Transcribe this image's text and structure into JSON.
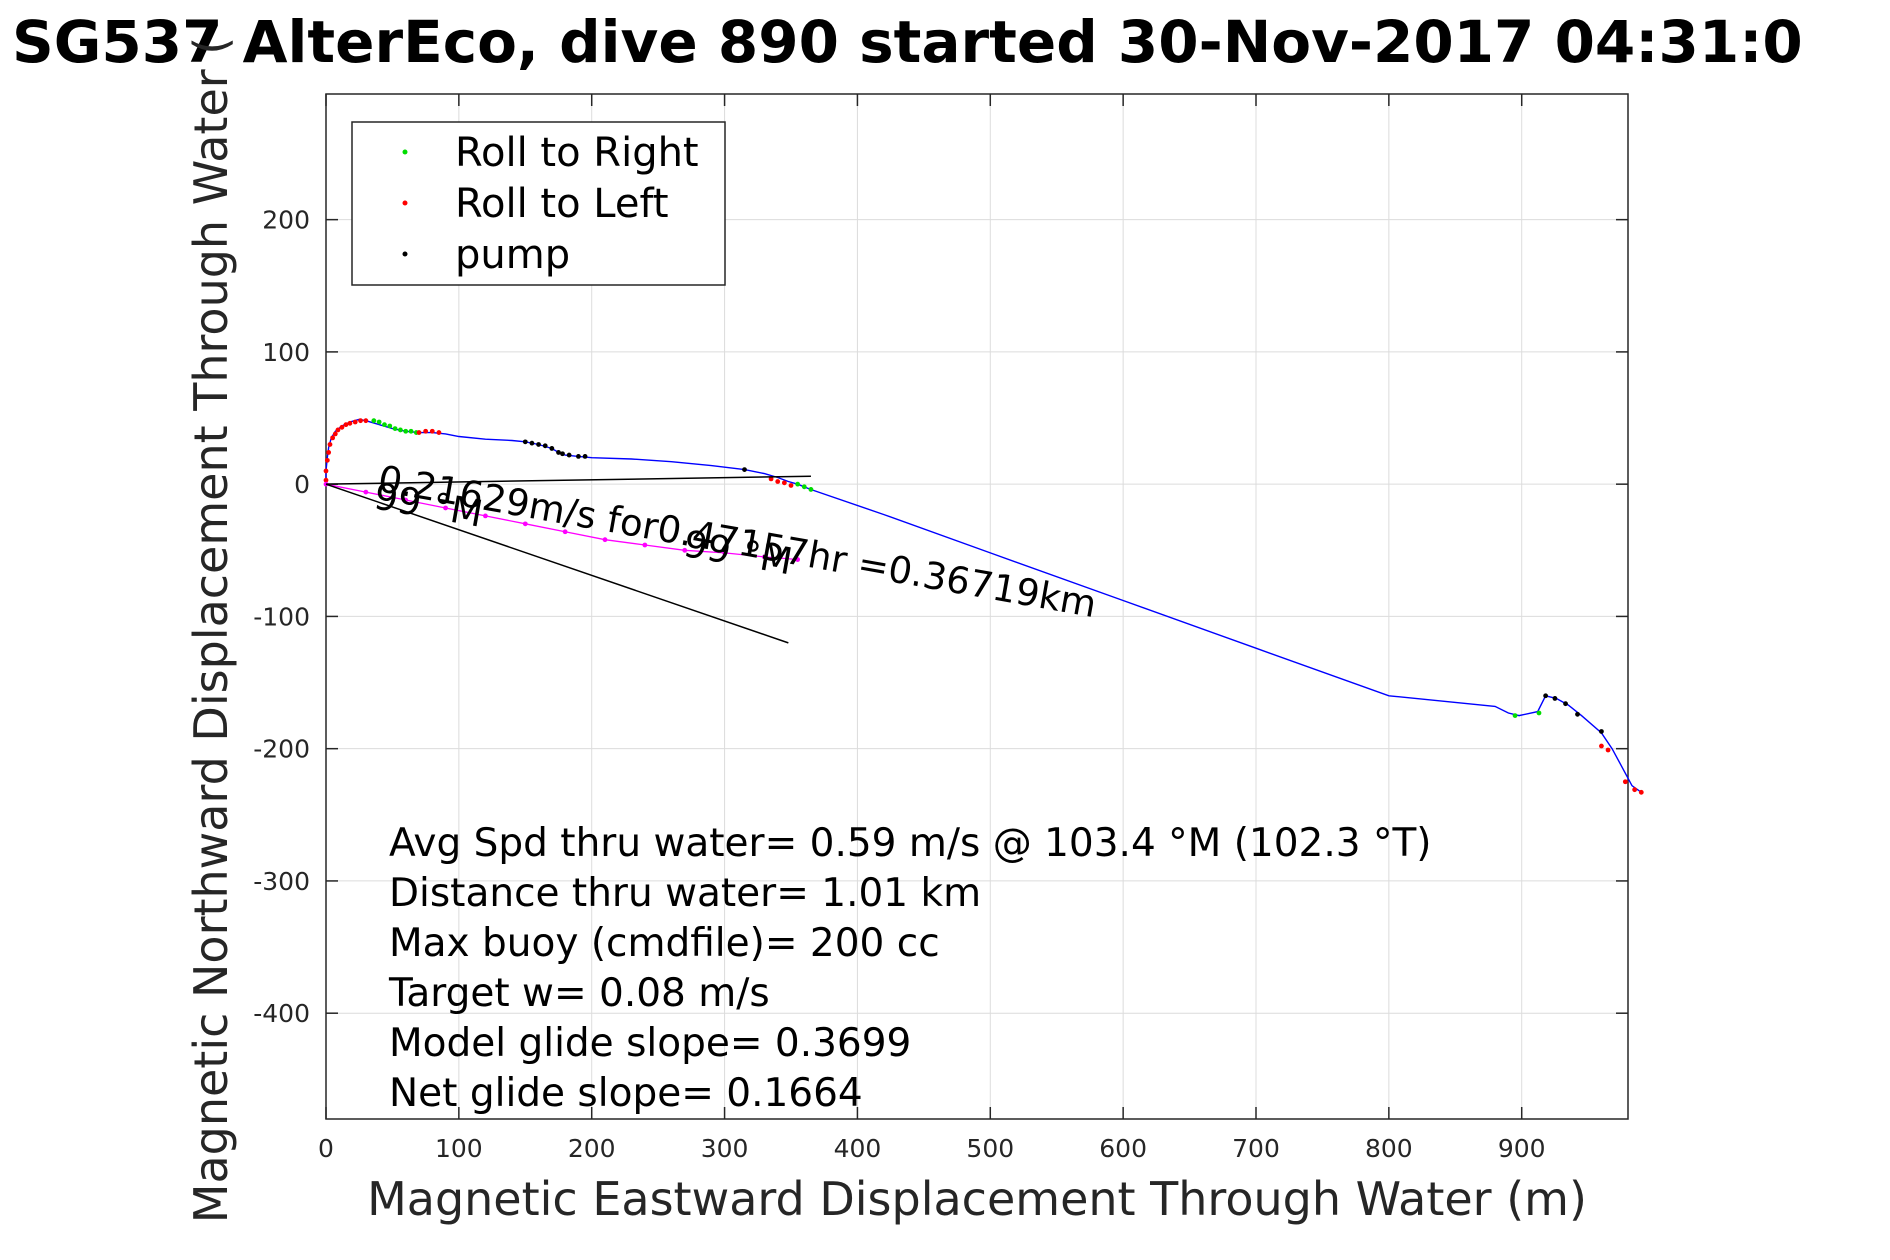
{
  "chart_data": {
    "type": "line",
    "title": "SG537 AlterEco, dive 890 started 30-Nov-2017 04:31:0",
    "xlabel": "Magnetic Eastward Displacement Through Water (m)",
    "ylabel": "Magnetic Northward Displacement Through Water (",
    "xlim": [
      0,
      980
    ],
    "ylim": [
      -480,
      295
    ],
    "xticks": [
      0,
      100,
      200,
      300,
      400,
      500,
      600,
      700,
      800,
      900
    ],
    "yticks": [
      200,
      100,
      0,
      -100,
      -200,
      -300,
      -400
    ],
    "grid": true,
    "legend_position": "top-left",
    "legend": [
      "Roll to Right",
      "Roll to Left",
      "pump"
    ],
    "colors": {
      "track": "#0000ff",
      "roll_right": "#00dd00",
      "roll_left": "#ff0000",
      "pump": "#000000",
      "vector": "#000000",
      "current": "#ff00ff",
      "grid": "#dcdcdc"
    },
    "track": {
      "x": [
        0,
        0,
        1,
        2,
        4,
        7,
        12,
        18,
        25,
        30,
        40,
        50,
        60,
        70,
        80,
        90,
        100,
        120,
        140,
        150,
        160,
        170,
        175,
        180,
        190,
        200,
        230,
        260,
        290,
        315,
        330,
        340,
        348,
        355,
        365,
        420,
        500,
        600,
        700,
        800,
        880,
        890,
        898,
        912,
        918,
        926,
        935,
        945,
        960,
        968,
        975,
        983,
        990
      ],
      "y": [
        0,
        10,
        20,
        28,
        35,
        40,
        44,
        47,
        49,
        48,
        45,
        42,
        40,
        39,
        39,
        38,
        36,
        34,
        33,
        32,
        30,
        27,
        24,
        22,
        21,
        20,
        19,
        17,
        14,
        11,
        8,
        5,
        2,
        0,
        -4,
        -23,
        -52,
        -88,
        -124,
        -160,
        -168,
        -173,
        -175,
        -172,
        -160,
        -162,
        -167,
        -175,
        -188,
        -200,
        -213,
        -228,
        -233
      ]
    },
    "roll_right": {
      "x": [
        36,
        40,
        44,
        48,
        52,
        56,
        60,
        64,
        68,
        355,
        360,
        365,
        895,
        913
      ],
      "y": [
        48,
        47,
        45,
        44,
        42,
        41,
        40,
        40,
        39,
        0,
        -2,
        -4,
        -175,
        -173
      ]
    },
    "roll_left": {
      "x": [
        0,
        0,
        1,
        2,
        3,
        5,
        7,
        9,
        12,
        15,
        18,
        22,
        26,
        30,
        70,
        75,
        80,
        85,
        335,
        340,
        345,
        350,
        960,
        965,
        978,
        985,
        990
      ],
      "y": [
        3,
        10,
        18,
        24,
        30,
        35,
        38,
        41,
        43,
        45,
        46,
        47,
        48,
        48,
        39,
        40,
        40,
        39,
        4,
        2,
        1,
        -1,
        -198,
        -201,
        -225,
        -231,
        -233
      ],
      "current_x": [
        0,
        30,
        60,
        90,
        120,
        150,
        180,
        210,
        240,
        270,
        300,
        330,
        355
      ],
      "current_y": [
        0,
        -6,
        -12,
        -18,
        -24,
        -30,
        -36,
        -42,
        -46,
        -50,
        -52,
        -55,
        -57
      ]
    },
    "pump": {
      "x": [
        150,
        155,
        160,
        165,
        170,
        175,
        178,
        183,
        190,
        195,
        315,
        918,
        925,
        933,
        942,
        960
      ],
      "y": [
        32,
        31,
        30,
        29,
        27,
        24,
        23,
        22,
        21,
        21,
        11,
        -160,
        -162,
        -166,
        -174,
        -187
      ]
    },
    "vectors": [
      {
        "x": [
          0,
          365
        ],
        "y": [
          0,
          6
        ]
      },
      {
        "x": [
          0,
          348
        ],
        "y": [
          0,
          -120
        ]
      }
    ],
    "vector_labels": [
      {
        "text": "0.21629m/s for0.47157hr =0.36719km",
        "x": 38,
        "y": -5,
        "angle": 10
      },
      {
        "text": "99 °M",
        "x": 35,
        "y": -18,
        "angle": 10
      },
      {
        "text": "99 °M",
        "x": 268,
        "y": -54,
        "angle": 10
      }
    ],
    "annotations": [
      "Avg Spd thru water=  0.59 m/s @ 103.4 °M (102.3 °T)",
      "Distance thru water=  1.01 km",
      "Max buoy (cmdfile)= 200 cc",
      "Target w= 0.08 m/s",
      "Model glide slope= 0.3699",
      "Net glide slope= 0.1664"
    ]
  }
}
